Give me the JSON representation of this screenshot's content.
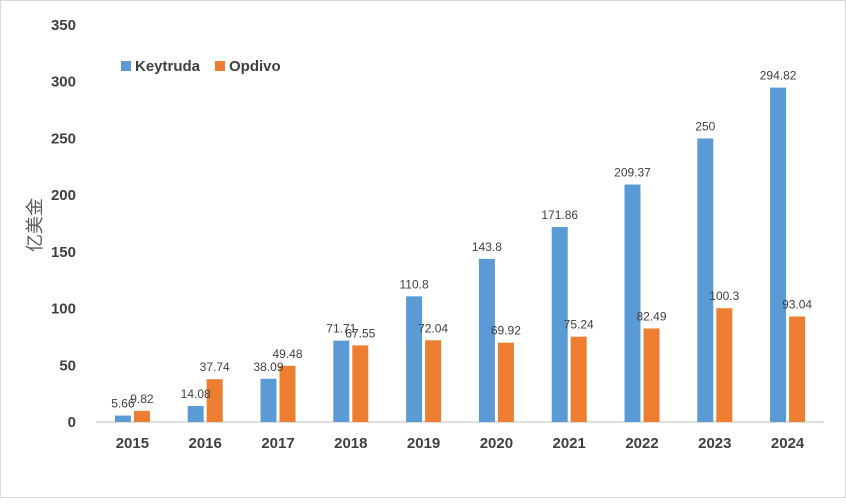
{
  "chart_data": {
    "type": "bar",
    "title": "",
    "xlabel": "",
    "ylabel": "亿美金",
    "ylim": [
      0,
      350
    ],
    "yticks": [
      0,
      50,
      100,
      150,
      200,
      250,
      300,
      350
    ],
    "grid": false,
    "legend_position": "top-left",
    "categories": [
      "2015",
      "2016",
      "2017",
      "2018",
      "2019",
      "2020",
      "2021",
      "2022",
      "2023",
      "2024"
    ],
    "series": [
      {
        "name": "Keytruda",
        "color": "#5B9BD5",
        "values": [
          5.66,
          14.08,
          38.09,
          71.71,
          110.8,
          143.8,
          171.86,
          209.37,
          250,
          294.82
        ],
        "labels": [
          "5.66",
          "14.08",
          "38.09",
          "71.71",
          "110.8",
          "143.8",
          "171.86",
          "209.37",
          "250",
          "294.82"
        ]
      },
      {
        "name": "Opdivo",
        "color": "#ED7D31",
        "values": [
          9.82,
          37.74,
          49.48,
          67.55,
          72.04,
          69.92,
          75.24,
          82.49,
          100.3,
          93.04
        ],
        "labels": [
          "9.82",
          "37.74",
          "49.48",
          "67.55",
          "72.04",
          "69.92",
          "75.24",
          "82.49",
          "100.3",
          "93.04"
        ]
      }
    ]
  }
}
